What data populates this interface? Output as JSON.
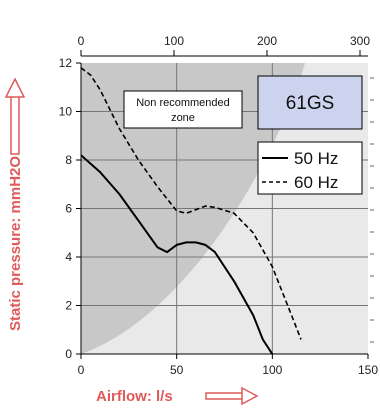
{
  "chart_data": {
    "type": "line",
    "title": "",
    "xlabel": "Airflow: l/s",
    "ylabel": "Static pressure: mmH2O",
    "xlim": [
      0,
      150
    ],
    "ylim": [
      0,
      12
    ],
    "x_ticks": [
      0,
      50,
      100,
      150
    ],
    "y_ticks": [
      0,
      2,
      4,
      6,
      8,
      10,
      12
    ],
    "x2_ticks": [
      0,
      100,
      200,
      300
    ],
    "grid": true,
    "legend_position": "right",
    "model_label": "61GS",
    "zone_label_line1": "Non recommended",
    "zone_label_line2": "zone",
    "series": [
      {
        "name": "50 Hz",
        "style": "solid",
        "color": "#000000",
        "x": [
          0,
          10,
          20,
          30,
          40,
          45,
          50,
          55,
          60,
          65,
          70,
          80,
          90,
          95,
          100
        ],
        "y": [
          8.2,
          7.5,
          6.6,
          5.5,
          4.4,
          4.2,
          4.5,
          4.6,
          4.6,
          4.5,
          4.2,
          3.0,
          1.6,
          0.6,
          0
        ]
      },
      {
        "name": "60 Hz",
        "style": "dashed",
        "color": "#000000",
        "x": [
          0,
          5,
          10,
          20,
          30,
          40,
          50,
          55,
          60,
          65,
          70,
          80,
          90,
          100,
          110,
          115
        ],
        "y": [
          11.8,
          11.5,
          10.9,
          9.3,
          8.0,
          6.9,
          5.9,
          5.8,
          5.95,
          6.1,
          6.05,
          5.8,
          5.0,
          3.6,
          1.6,
          0.6
        ]
      }
    ],
    "colors": {
      "zone_shade": "#c8c8c8",
      "plot_bg": "#e9e9e9",
      "model_box": "#ccd3ee",
      "axis_label": "#e05a5a"
    }
  }
}
